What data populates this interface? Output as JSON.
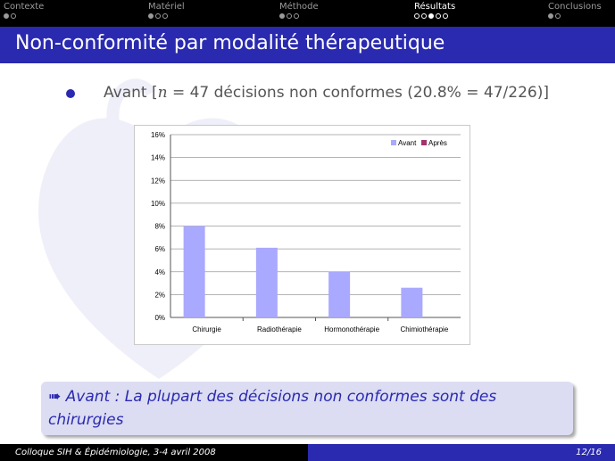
{
  "nav": {
    "sections": [
      {
        "label": "Contexte",
        "dots": 2,
        "filled": 0,
        "active": false
      },
      {
        "label": "Matériel",
        "dots": 3,
        "filled": 0,
        "active": false
      },
      {
        "label": "Méthode",
        "dots": 3,
        "filled": 0,
        "active": false
      },
      {
        "label": "Résultats",
        "dots": 5,
        "filled": 2,
        "active": true
      },
      {
        "label": "Conclusions",
        "dots": 2,
        "filled": 0,
        "active": false
      }
    ]
  },
  "slide": {
    "title": "Non-conformité par modalité thérapeutique",
    "bullet_prefix": "Avant [",
    "bullet_var": "n",
    "bullet_rest": " = 47 décisions non conformes (20.8% = 47/226)]",
    "block_arrow": "➠",
    "block_text": "Avant : La plupart des décisions non conformes sont des chirurgies"
  },
  "footer": {
    "left": "Colloque SIH & Épidémiologie, 3-4 avril 2008",
    "page": "12/16"
  },
  "chart_data": {
    "type": "bar",
    "categories": [
      "Chirurgie",
      "Radiothérapie",
      "Hormonothérapie",
      "Chimiothérapie"
    ],
    "series": [
      {
        "name": "Avant",
        "values": [
          8.0,
          6.1,
          4.0,
          2.6
        ],
        "color": "#a9a9ff"
      },
      {
        "name": "Après",
        "values": [
          null,
          null,
          null,
          null
        ],
        "color": "#a3326e"
      }
    ],
    "yticks": [
      "0%",
      "2%",
      "4%",
      "6%",
      "8%",
      "10%",
      "12%",
      "14%",
      "16%"
    ],
    "ylim": [
      0,
      16
    ],
    "grid": true,
    "legend": "top-right"
  }
}
